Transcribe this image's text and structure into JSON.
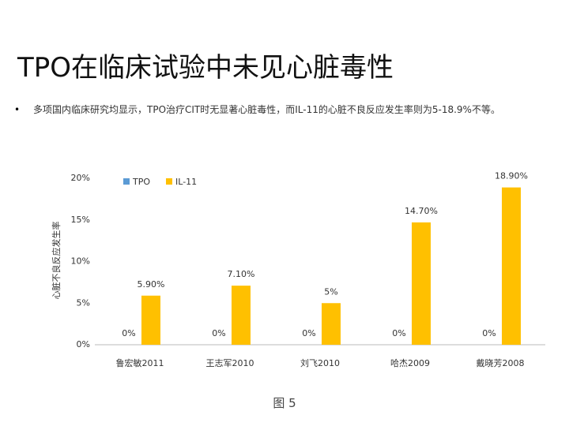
{
  "slide": {
    "title": "TPO在临床试验中未见心脏毒性",
    "bullet": "多项国内临床研究均显示，TPO治疗CIT时无显著心脏毒性，而IL-11的心脏不良反应发生率则为5-18.9%不等。",
    "caption": "图 5"
  },
  "chart_data": {
    "type": "bar",
    "y_label": "心脏不良反应发生率",
    "categories": [
      "鲁宏敏2011",
      "王志军2010",
      "刘飞2010",
      "哈杰2009",
      "戴晓芳2008"
    ],
    "series": [
      {
        "name": "TPO",
        "color": "#5b9bd5",
        "values": [
          0,
          0,
          0,
          0,
          0
        ],
        "value_labels": [
          "0%",
          "0%",
          "0%",
          "0%",
          "0%"
        ]
      },
      {
        "name": "IL-11",
        "color": "#ffc000",
        "values": [
          5.9,
          7.1,
          5,
          14.7,
          18.9
        ],
        "value_labels": [
          "5.90%",
          "7.10%",
          "5%",
          "14.70%",
          "18.90%"
        ]
      }
    ],
    "ylim": [
      0,
      20
    ],
    "yticks": [
      {
        "value": 0,
        "label": "0%"
      },
      {
        "value": 5,
        "label": "5%"
      },
      {
        "value": 10,
        "label": "10%"
      },
      {
        "value": 15,
        "label": "15%"
      },
      {
        "value": 20,
        "label": "20%"
      }
    ],
    "legend": "top-left"
  }
}
